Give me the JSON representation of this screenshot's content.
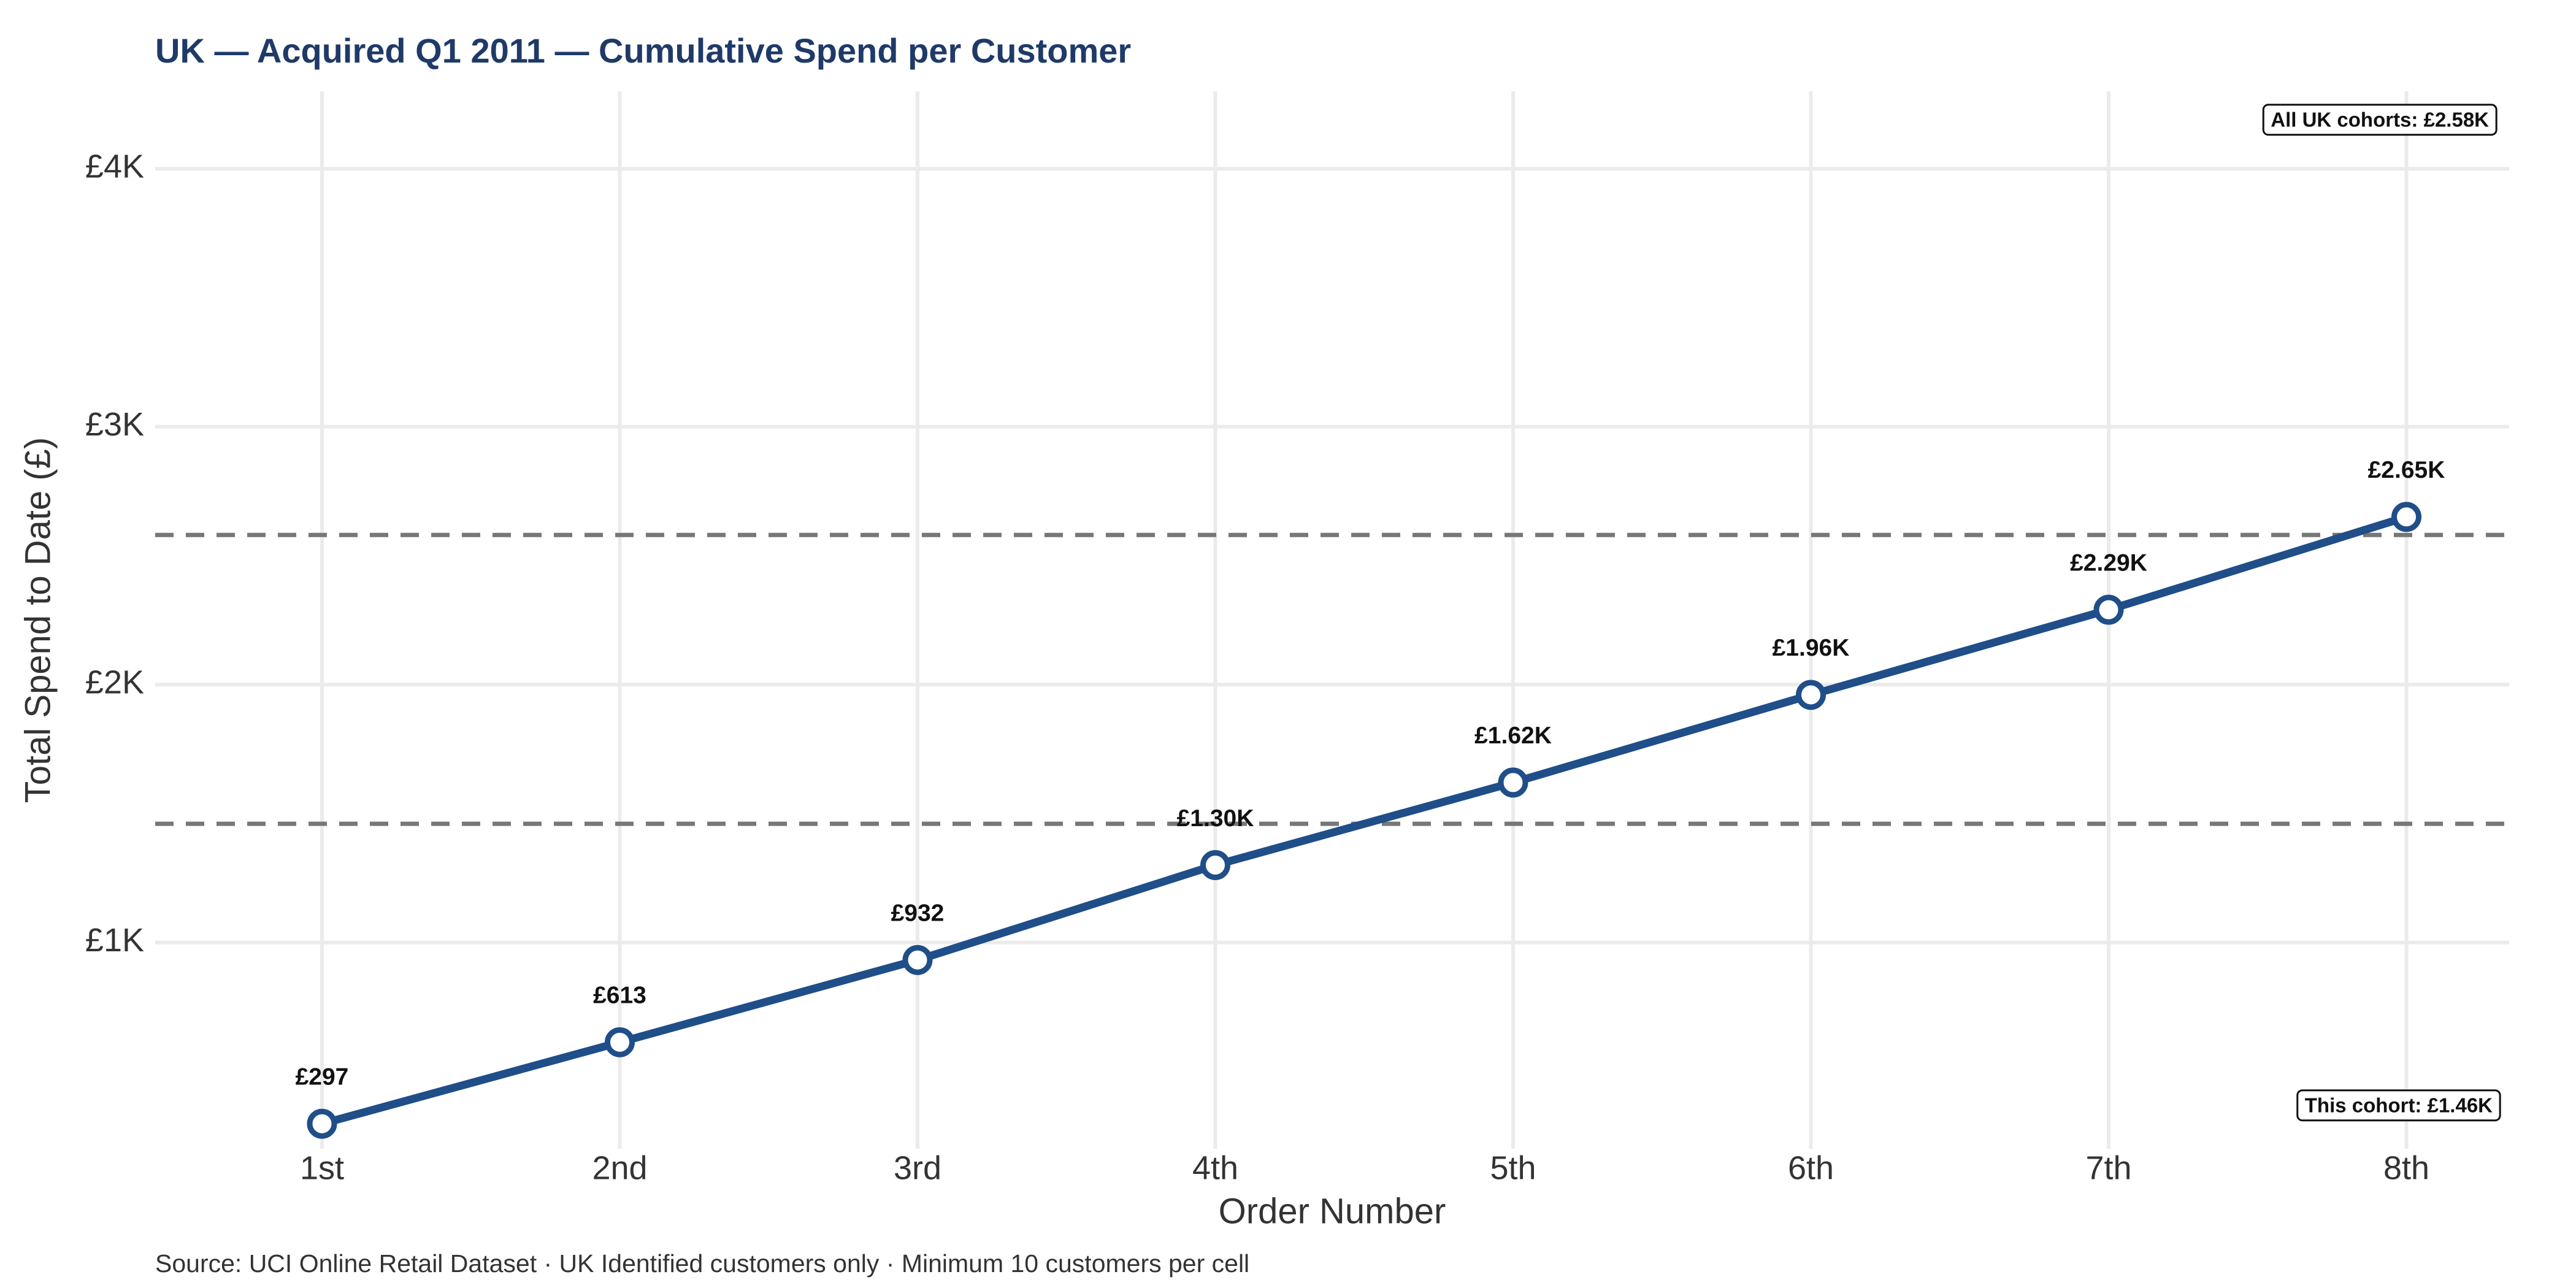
{
  "chart_data": {
    "type": "line",
    "title": "UK — Acquired Q1 2011 — Cumulative Spend per Customer",
    "xlabel": "Order Number",
    "ylabel": "Total Spend to Date (£)",
    "source": "Source: UCI Online Retail Dataset · UK Identified customers only · Minimum 10 customers per cell",
    "categories": [
      "1st",
      "2nd",
      "3rd",
      "4th",
      "5th",
      "6th",
      "7th",
      "8th"
    ],
    "series": [
      {
        "name": "Cumulative spend",
        "color": "#1f4e89",
        "values": [
          297,
          613,
          932,
          1300,
          1620,
          1960,
          2290,
          2650
        ],
        "value_labels": [
          "£297",
          "£613",
          "£932",
          "£1.30K",
          "£1.62K",
          "£1.96K",
          "£2.29K",
          "£2.65K"
        ]
      }
    ],
    "reference_lines": [
      {
        "value": 2580,
        "label": "All UK cohorts: £2.58K",
        "color": "#777777"
      },
      {
        "value": 1460,
        "label": "This cohort: £1.46K",
        "color": "#777777"
      }
    ],
    "ylim": [
      200,
      4300
    ],
    "yticks": [
      {
        "value": 1000,
        "label": "£1K"
      },
      {
        "value": 2000,
        "label": "£2K"
      },
      {
        "value": 3000,
        "label": "£3K"
      },
      {
        "value": 4000,
        "label": "£4K"
      }
    ],
    "grid": true
  }
}
